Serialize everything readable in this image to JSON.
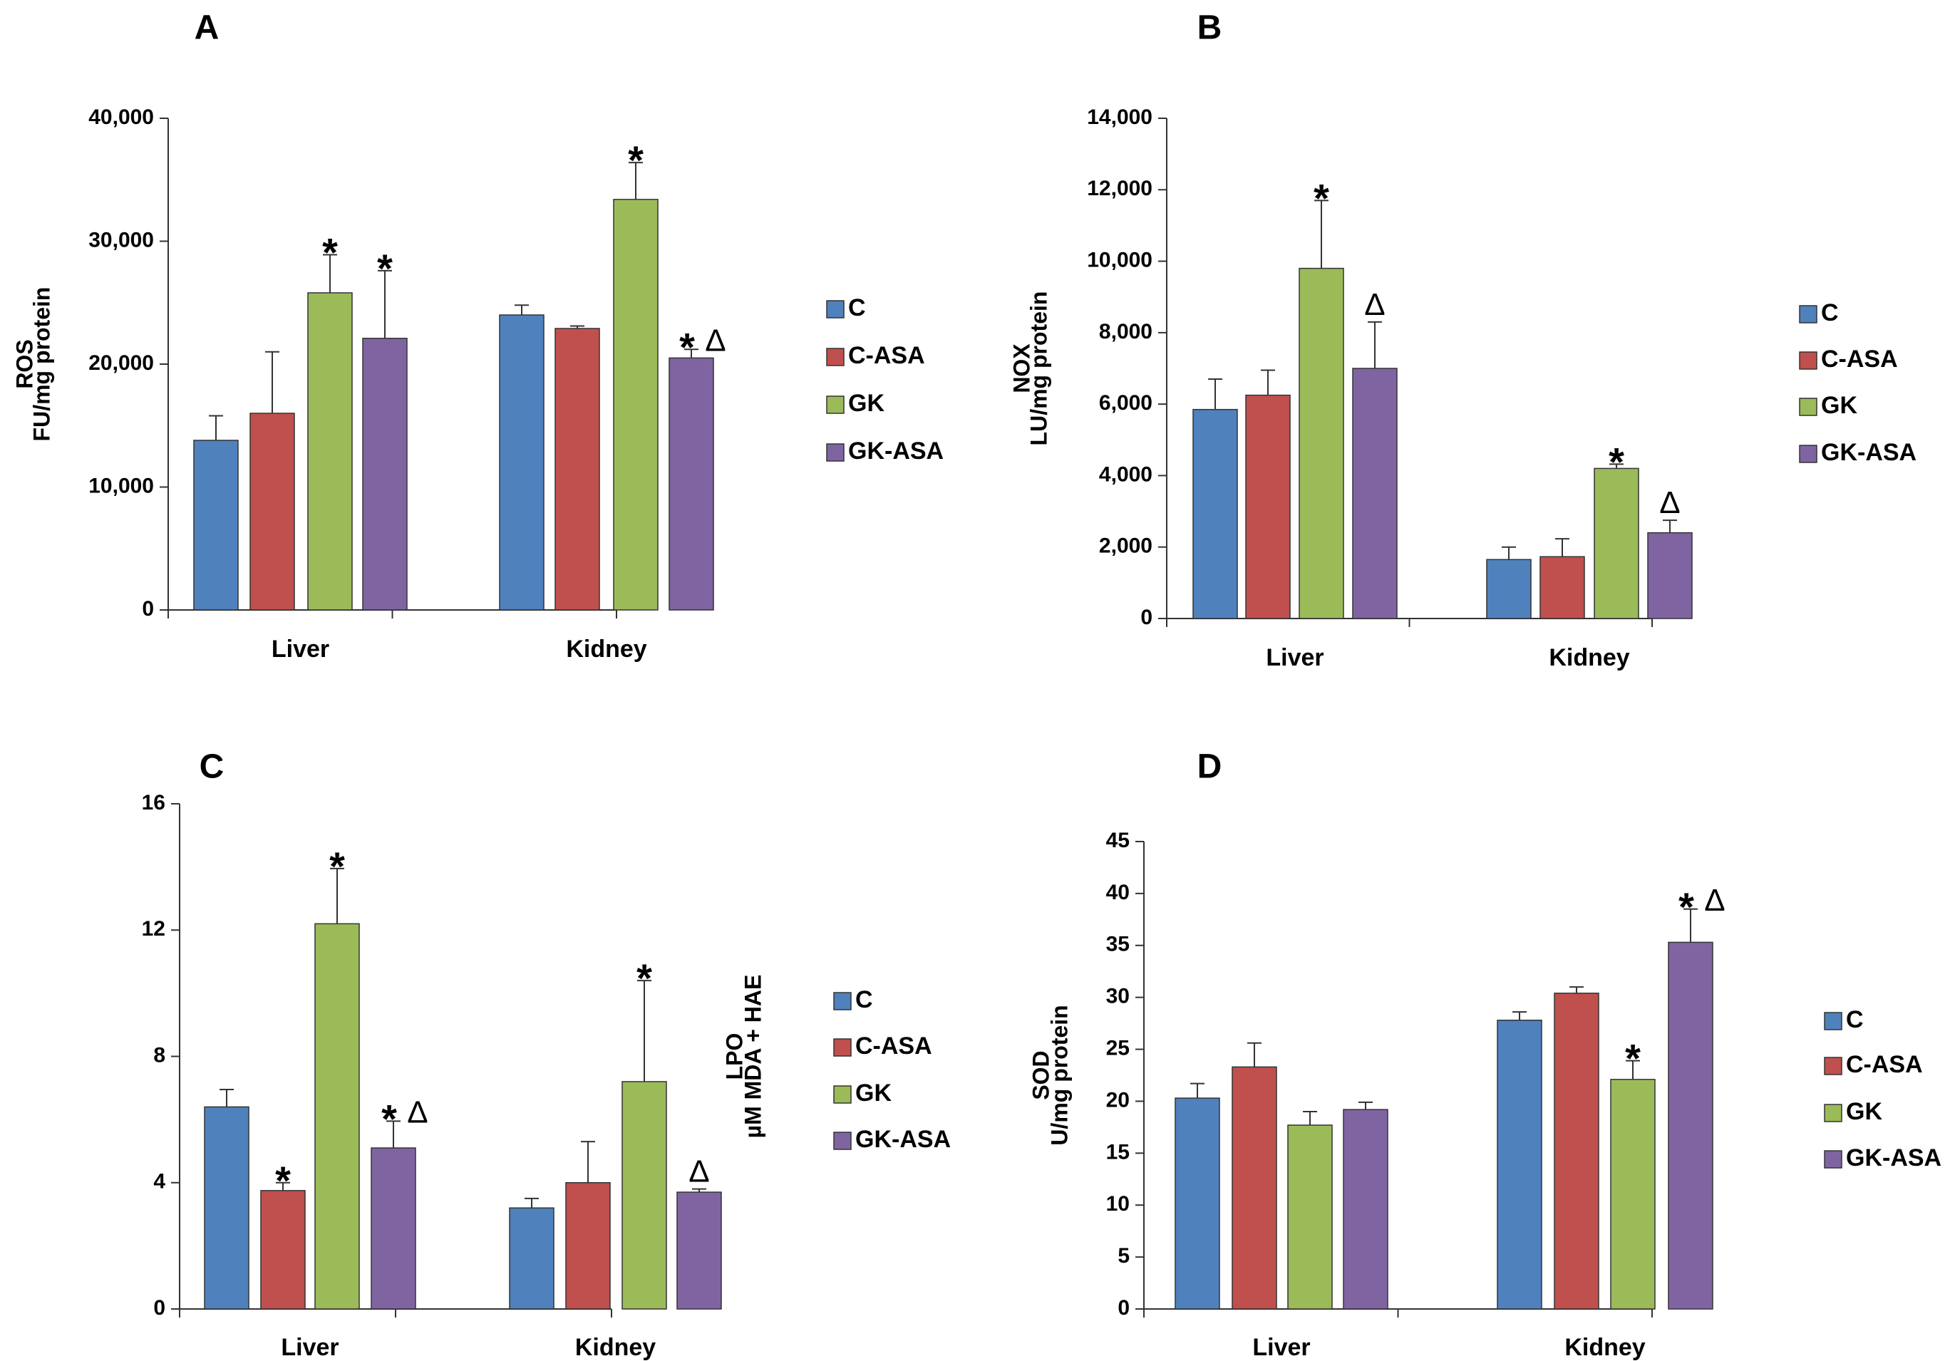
{
  "figure": {
    "colors": {
      "C": "#4F81BD",
      "C-ASA": "#C0504D",
      "GK": "#9BBB59",
      "GK-ASA": "#8064A2",
      "outline": "#333333"
    }
  },
  "chart_data": [
    {
      "panel": "A",
      "type": "bar",
      "categories": [
        "Liver",
        "Kidney"
      ],
      "ylabel": [
        "ROS",
        "FU/mg protein"
      ],
      "ylim": [
        0,
        40000
      ],
      "yticks": [
        0,
        10000,
        20000,
        30000,
        40000
      ],
      "ytick_labels": [
        "0",
        "10,000",
        "20,000",
        "30,000",
        "40,000"
      ],
      "series": [
        {
          "name": "C",
          "values": [
            13800,
            24000
          ],
          "errors": [
            2000,
            800
          ],
          "marks": [
            [
              "",
              ""
            ],
            [
              "",
              ""
            ]
          ]
        },
        {
          "name": "C-ASA",
          "values": [
            16000,
            22900
          ],
          "errors": [
            5000,
            200
          ],
          "marks": [
            [
              "",
              ""
            ],
            [
              "",
              ""
            ]
          ]
        },
        {
          "name": "GK",
          "values": [
            25800,
            33400
          ],
          "errors": [
            3100,
            3000
          ],
          "marks": [
            [
              "*",
              ""
            ],
            [
              "*",
              ""
            ]
          ]
        },
        {
          "name": "GK-ASA",
          "values": [
            22100,
            20500
          ],
          "errors": [
            5500,
            700
          ],
          "marks": [
            [
              "*",
              ""
            ],
            [
              "*",
              "Δ"
            ]
          ]
        }
      ]
    },
    {
      "panel": "B",
      "type": "bar",
      "categories": [
        "Liver",
        "Kidney"
      ],
      "ylabel": [
        "NOX",
        "LU/mg protein"
      ],
      "ylim": [
        0,
        14000
      ],
      "yticks": [
        0,
        2000,
        4000,
        6000,
        8000,
        10000,
        12000,
        14000
      ],
      "ytick_labels": [
        "0",
        "2,000",
        "4,000",
        "6,000",
        "8,000",
        "10,000",
        "12,000",
        "14,000"
      ],
      "series": [
        {
          "name": "C",
          "values": [
            5850,
            1650
          ],
          "errors": [
            850,
            350
          ],
          "marks": [
            [
              "",
              ""
            ],
            [
              "",
              ""
            ]
          ]
        },
        {
          "name": "C-ASA",
          "values": [
            6250,
            1730
          ],
          "errors": [
            700,
            500
          ],
          "marks": [
            [
              "",
              ""
            ],
            [
              "",
              ""
            ]
          ]
        },
        {
          "name": "GK",
          "values": [
            9800,
            4200
          ],
          "errors": [
            1900,
            120
          ],
          "marks": [
            [
              "*",
              ""
            ],
            [
              "*",
              ""
            ]
          ]
        },
        {
          "name": "GK-ASA",
          "values": [
            7000,
            2400
          ],
          "errors": [
            1300,
            350
          ],
          "marks": [
            [
              "",
              "Δ"
            ],
            [
              "",
              "Δ"
            ]
          ]
        }
      ]
    },
    {
      "panel": "C",
      "type": "bar",
      "categories": [
        "Liver",
        "Kidney"
      ],
      "ylabel": [
        "LPO",
        "µM MDA + HAE"
      ],
      "ylim": [
        0,
        16
      ],
      "yticks": [
        0,
        4,
        8,
        12,
        16
      ],
      "ytick_labels": [
        "0",
        "4",
        "8",
        "12",
        "16"
      ],
      "series": [
        {
          "name": "C",
          "values": [
            6.4,
            3.2
          ],
          "errors": [
            0.55,
            0.3
          ],
          "marks": [
            [
              "",
              ""
            ],
            [
              "",
              ""
            ]
          ]
        },
        {
          "name": "C-ASA",
          "values": [
            3.75,
            4.0
          ],
          "errors": [
            0.25,
            1.3
          ],
          "marks": [
            [
              "*",
              ""
            ],
            [
              "",
              ""
            ]
          ]
        },
        {
          "name": "GK",
          "values": [
            12.2,
            7.2
          ],
          "errors": [
            1.75,
            3.2
          ],
          "marks": [
            [
              "*",
              ""
            ],
            [
              "*",
              ""
            ]
          ]
        },
        {
          "name": "GK-ASA",
          "values": [
            5.1,
            3.7
          ],
          "errors": [
            0.85,
            0.1
          ],
          "marks": [
            [
              "*",
              "Δ"
            ],
            [
              "",
              "Δ"
            ]
          ]
        }
      ]
    },
    {
      "panel": "D",
      "type": "bar",
      "categories": [
        "Liver",
        "Kidney"
      ],
      "ylabel": [
        "SOD",
        "U/mg protein"
      ],
      "ylim": [
        0,
        45
      ],
      "yticks": [
        0,
        5,
        10,
        15,
        20,
        25,
        30,
        35,
        40,
        45
      ],
      "ytick_labels": [
        "0",
        "5",
        "10",
        "15",
        "20",
        "25",
        "30",
        "35",
        "40",
        "45"
      ],
      "series": [
        {
          "name": "C",
          "values": [
            20.3,
            27.8
          ],
          "errors": [
            1.4,
            0.8
          ],
          "marks": [
            [
              "",
              ""
            ],
            [
              "",
              ""
            ]
          ]
        },
        {
          "name": "C-ASA",
          "values": [
            23.3,
            30.4
          ],
          "errors": [
            2.3,
            0.6
          ],
          "marks": [
            [
              "",
              ""
            ],
            [
              "",
              ""
            ]
          ]
        },
        {
          "name": "GK",
          "values": [
            17.7,
            22.1
          ],
          "errors": [
            1.3,
            1.8
          ],
          "marks": [
            [
              "",
              ""
            ],
            [
              "*",
              ""
            ]
          ]
        },
        {
          "name": "GK-ASA",
          "values": [
            19.2,
            35.3
          ],
          "errors": [
            0.7,
            3.2
          ],
          "marks": [
            [
              "",
              ""
            ],
            [
              "*",
              "Δ"
            ]
          ]
        }
      ]
    }
  ]
}
